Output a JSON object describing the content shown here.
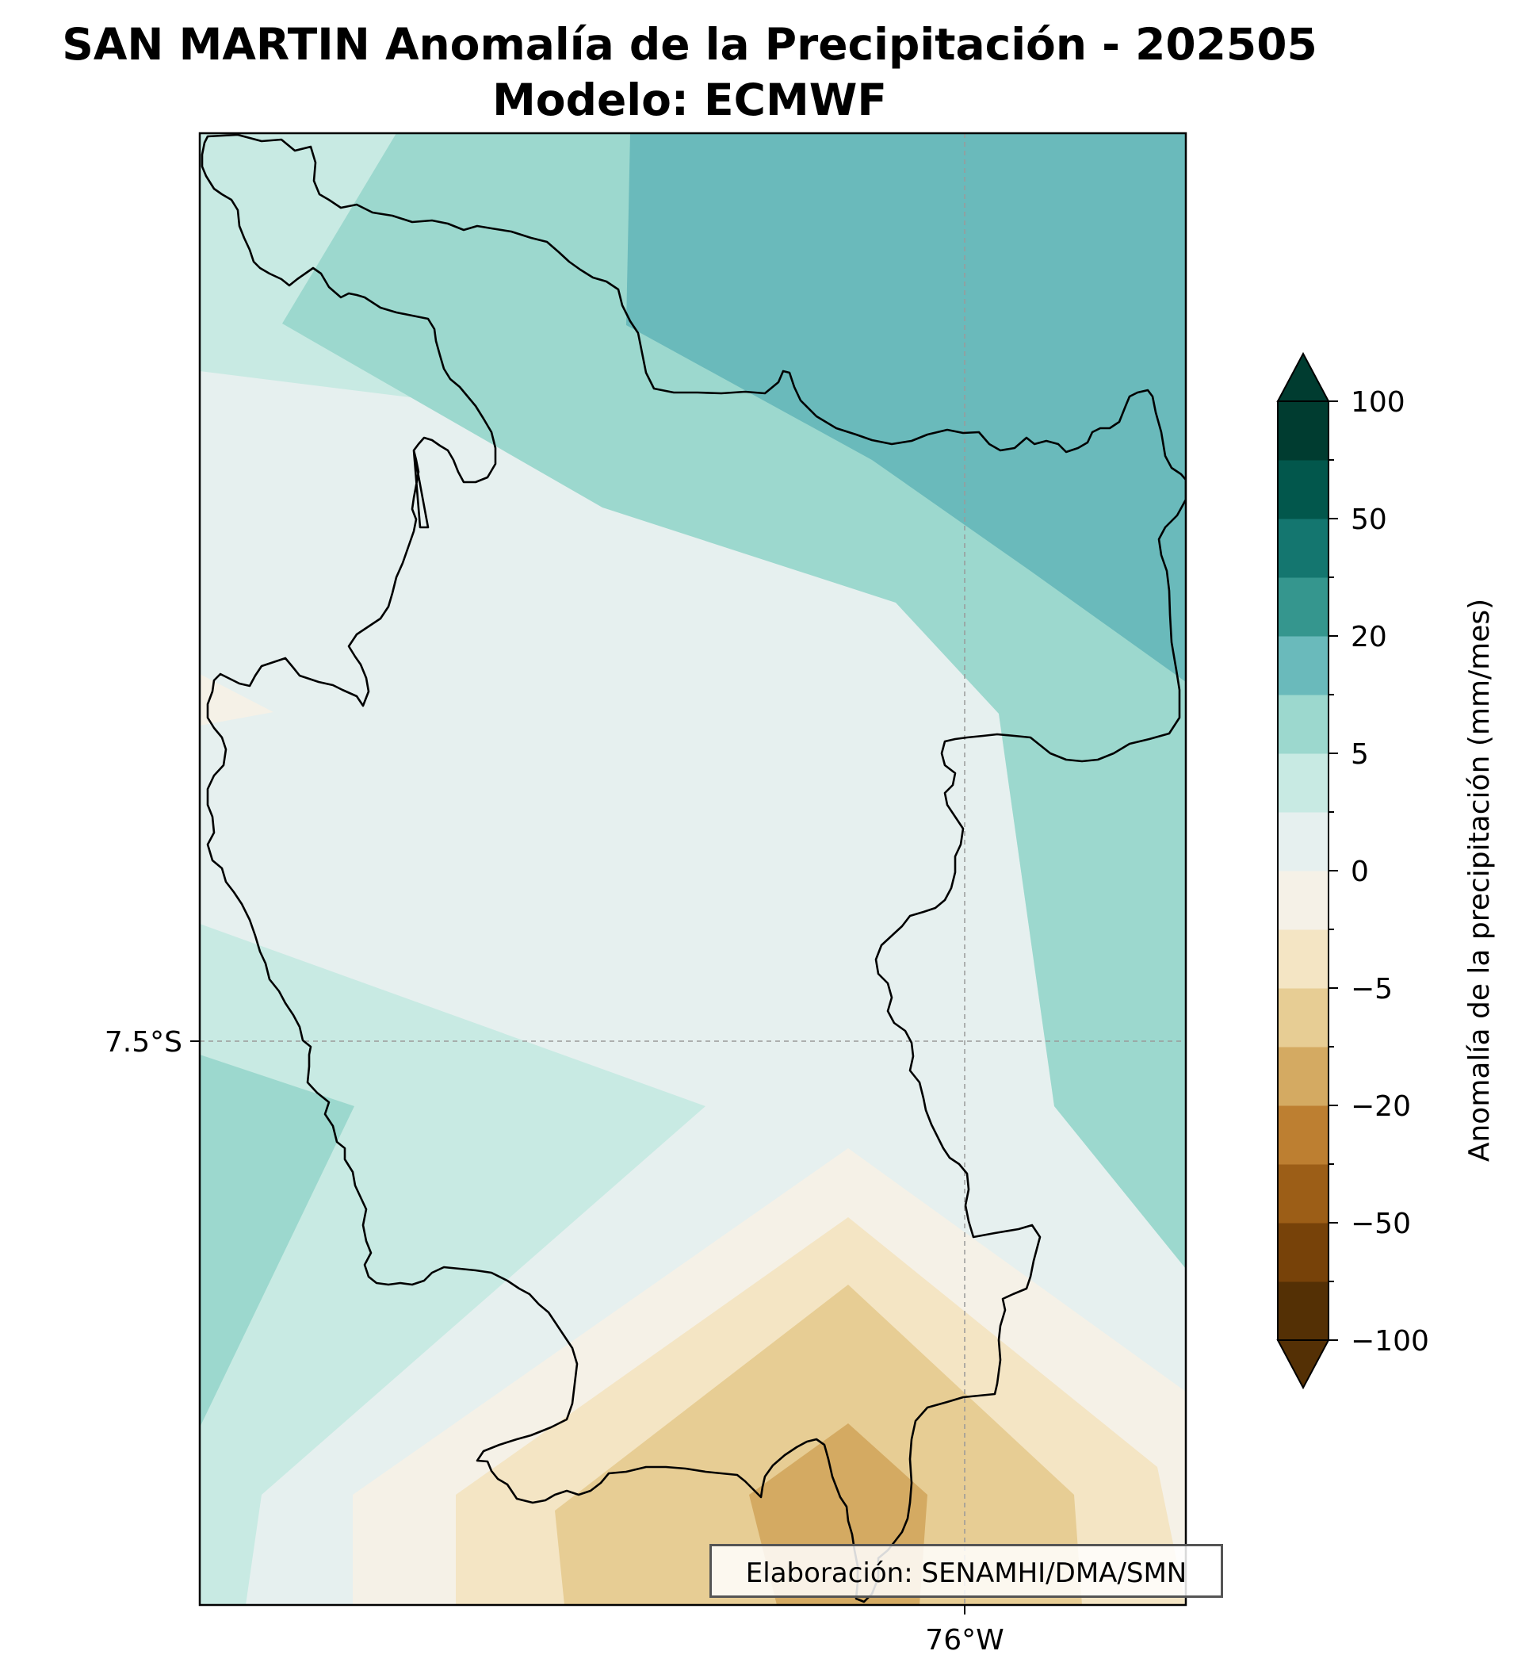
{
  "title": {
    "line1": "SAN MARTIN Anomalía de la Precipitación - 202505",
    "line2": "Modelo: ECMWF"
  },
  "map": {
    "lat_label": "7.5°S",
    "lon_label": "76°W",
    "credit": "Elaboración: SENAMHI/DMA/SMN",
    "region_boundary": "San Martin department outline (black)",
    "graticule": "dashed grey"
  },
  "colorbar": {
    "label": "Anomalía de la precipitación (mm/mes)",
    "tick_labels": [
      "100",
      "50",
      "20",
      "5",
      "0",
      "−5",
      "−20",
      "−50",
      "−100"
    ],
    "levels": [
      -100,
      -80,
      -50,
      -30,
      -20,
      -10,
      -5,
      -2,
      0,
      2,
      5,
      10,
      20,
      30,
      50,
      80,
      100
    ],
    "colors": [
      "#543005",
      "#774209",
      "#9c5e17",
      "#bd7f31",
      "#d4aa62",
      "#e7cd94",
      "#f4e5c4",
      "#f5f1e7",
      "#e6f0ef",
      "#c8eae3",
      "#9cd8ce",
      "#6ababb",
      "#35968e",
      "#14766f",
      "#02574c",
      "#003c30"
    ],
    "under_color": "#543005",
    "over_color": "#003c30"
  }
}
